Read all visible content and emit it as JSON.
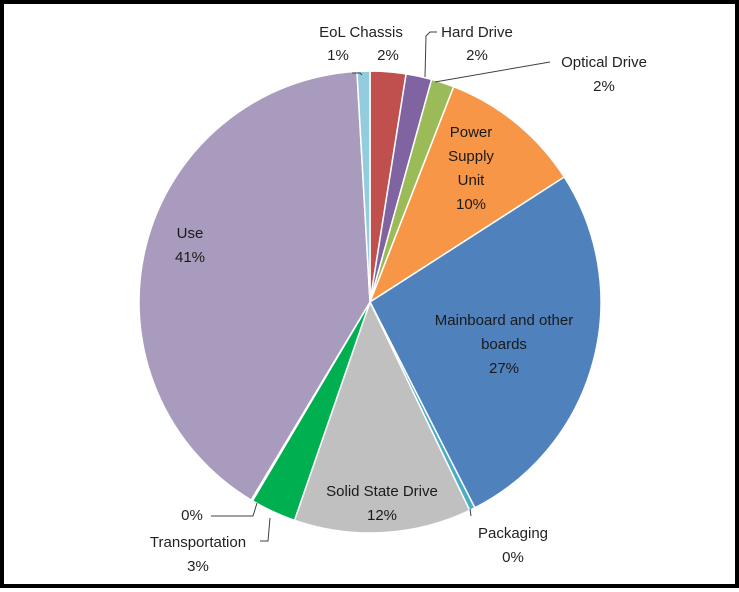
{
  "chart_data": {
    "type": "pie",
    "title": "",
    "slices": [
      {
        "label": "EoL Chassis",
        "percent_label": "2%",
        "value": 2.5,
        "color": "#c0504d"
      },
      {
        "label": "Hard Drive",
        "percent_label": "2%",
        "value": 1.8,
        "color": "#8064a2"
      },
      {
        "label": "Optical Drive",
        "percent_label": "2%",
        "value": 1.6,
        "color": "#9bbb59"
      },
      {
        "label": "Power Supply Unit",
        "percent_label": "10%",
        "value": 10.0,
        "color": "#f79646"
      },
      {
        "label": "Mainboard and other boards",
        "percent_label": "27%",
        "value": 26.6,
        "color": "#4f81bd"
      },
      {
        "label": "Packaging",
        "percent_label": "0%",
        "value": 0.4,
        "color": "#4bacc6"
      },
      {
        "label": "Solid State Drive",
        "percent_label": "12%",
        "value": 12.4,
        "color": "#c0c0c0"
      },
      {
        "label": "Transportation",
        "percent_label": "3%",
        "value": 3.2,
        "color": "#00b050"
      },
      {
        "label": "",
        "percent_label": "0%",
        "value": 0.1,
        "color": "#f2f2f2"
      },
      {
        "label": "Use",
        "percent_label": "41%",
        "value": 40.5,
        "color": "#a99bbd"
      },
      {
        "label": "",
        "percent_label": "1%",
        "value": 0.9,
        "color": "#93cddd"
      }
    ]
  }
}
